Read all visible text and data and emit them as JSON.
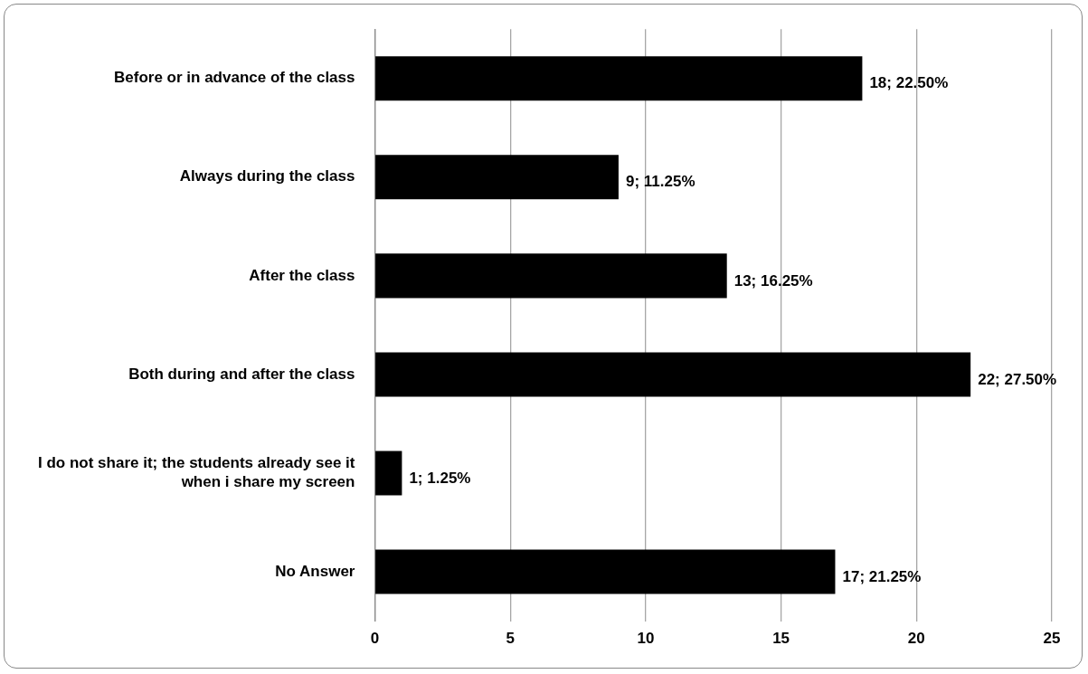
{
  "chart_data": {
    "type": "bar",
    "orientation": "horizontal",
    "categories": [
      "Before or in advance of the class",
      "Always during the class",
      "After the class",
      "Both during and after the class",
      "I do not share it; the students already see it when i share my screen",
      "No Answer"
    ],
    "values": [
      18,
      9,
      13,
      22,
      1,
      17
    ],
    "value_labels": [
      "18; 22.50%",
      "9; 11.25%",
      "13; 16.25%",
      "22; 27.50%",
      "1; 1.25%",
      "17; 21.25%"
    ],
    "color": "#000000",
    "xlim": [
      0,
      25
    ],
    "xticks": [
      0,
      5,
      10,
      15,
      20,
      25
    ],
    "grid": "x",
    "legend": false
  }
}
